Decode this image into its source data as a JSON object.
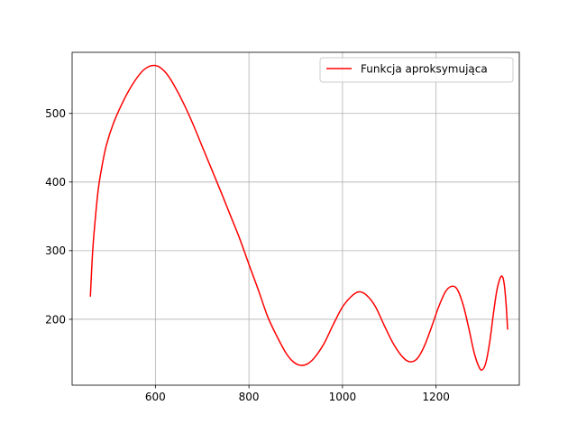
{
  "chart_data": {
    "type": "line",
    "title": "",
    "xlabel": "",
    "ylabel": "",
    "xlim": [
      422,
      1378
    ],
    "ylim": [
      104,
      589
    ],
    "xticks": [
      600,
      800,
      1000,
      1200
    ],
    "yticks": [
      200,
      300,
      400,
      500
    ],
    "grid": true,
    "legend_position": "upper right",
    "series": [
      {
        "name": "Funkcja aproksymująca",
        "color": "#ff0000",
        "x": [
          461,
          466,
          472,
          478,
          485,
          495,
          510,
          530,
          550,
          570,
          585,
          598,
          610,
          625,
          640,
          660,
          680,
          700,
          720,
          740,
          760,
          780,
          800,
          820,
          840,
          860,
          880,
          895,
          910,
          925,
          940,
          960,
          980,
          1000,
          1020,
          1035,
          1050,
          1070,
          1090,
          1110,
          1130,
          1145,
          1160,
          1175,
          1190,
          1205,
          1220,
          1233,
          1245,
          1258,
          1270,
          1282,
          1293,
          1300,
          1307,
          1315,
          1323,
          1330,
          1337,
          1342,
          1346,
          1350,
          1353
        ],
        "y": [
          233,
          300,
          350,
          390,
          420,
          453,
          485,
          516,
          541,
          560,
          568,
          570,
          567,
          557,
          541,
          515,
          485,
          452,
          419,
          386,
          352,
          318,
          280,
          243,
          204,
          175,
          150,
          138,
          133,
          135,
          144,
          164,
          192,
          218,
          234,
          240,
          236,
          219,
          190,
          163,
          144,
          138,
          143,
          161,
          188,
          217,
          240,
          248,
          244,
          221,
          187,
          150,
          129,
          127,
          138,
          168,
          210,
          242,
          260,
          262,
          250,
          220,
          185
        ]
      }
    ]
  }
}
